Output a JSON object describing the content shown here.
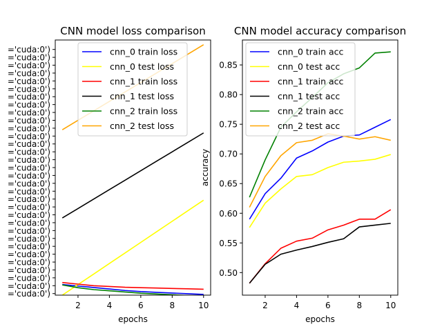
{
  "chart_data": [
    {
      "type": "line",
      "title": "CNN model loss comparison",
      "xlabel": "epochs",
      "ylabel": "",
      "x": [
        1,
        2,
        3,
        4,
        5,
        6,
        7,
        8,
        9,
        10
      ],
      "xlim": [
        0.55,
        10.45
      ],
      "xticks": [
        2,
        4,
        6,
        8,
        10
      ],
      "ylim": [
        -0.2,
        32.2
      ],
      "ytick_label": "='cuda:0')",
      "ytick_count": 32,
      "legend_position": "top-right",
      "series": [
        {
          "name": "cnn_0 train loss",
          "color": "#0000ff",
          "values": [
            1.15,
            0.96,
            0.77,
            0.58,
            0.39,
            0.25,
            0.16,
            0.07,
            -0.02,
            -0.11
          ]
        },
        {
          "name": "cnn_0 test loss",
          "color": "#ffff00",
          "values": [
            -0.2,
            1.14,
            2.48,
            3.82,
            5.16,
            6.5,
            7.84,
            9.18,
            10.52,
            11.86
          ]
        },
        {
          "name": "cnn_1 train loss",
          "color": "#ff0000",
          "values": [
            1.4,
            1.2,
            1.0,
            0.9,
            0.8,
            0.75,
            0.7,
            0.65,
            0.6,
            0.55
          ]
        },
        {
          "name": "cnn_1 test loss",
          "color": "#000000",
          "values": [
            9.6,
            10.8,
            12.0,
            13.2,
            14.4,
            15.6,
            16.8,
            18.0,
            19.2,
            20.4
          ]
        },
        {
          "name": "cnn_2 train loss",
          "color": "#008000",
          "values": [
            1.1,
            0.75,
            0.5,
            0.35,
            0.2,
            0.05,
            -0.05,
            -0.15,
            -0.25,
            -0.35
          ]
        },
        {
          "name": "cnn_2 test loss",
          "color": "#ffa500",
          "values": [
            20.8,
            22.0,
            23.2,
            24.4,
            25.6,
            26.8,
            28.0,
            29.2,
            30.4,
            31.6
          ]
        }
      ]
    },
    {
      "type": "line",
      "title": "CNN model accuracy comparison",
      "xlabel": "epochs",
      "ylabel": "accuracy",
      "x": [
        1,
        2,
        3,
        4,
        5,
        6,
        7,
        8,
        9,
        10
      ],
      "xlim": [
        0.55,
        10.45
      ],
      "xticks": [
        2,
        4,
        6,
        8,
        10
      ],
      "ylim": [
        0.462,
        0.892
      ],
      "yticks": [
        0.5,
        0.55,
        0.6,
        0.65,
        0.7,
        0.75,
        0.8,
        0.85
      ],
      "ytick_labels": [
        "0.50",
        "0.55",
        "0.60",
        "0.65",
        "0.70",
        "0.75",
        "0.80",
        "0.85"
      ],
      "legend_position": "top-left",
      "series": [
        {
          "name": "cnn_0 train acc",
          "color": "#0000ff",
          "values": [
            0.59,
            0.633,
            0.659,
            0.693,
            0.705,
            0.72,
            0.73,
            0.732,
            0.745,
            0.758
          ]
        },
        {
          "name": "cnn_0 test acc",
          "color": "#ffff00",
          "values": [
            0.576,
            0.617,
            0.641,
            0.662,
            0.665,
            0.677,
            0.686,
            0.688,
            0.691,
            0.699
          ]
        },
        {
          "name": "cnn_1 train acc",
          "color": "#ff0000",
          "values": [
            0.482,
            0.515,
            0.541,
            0.553,
            0.558,
            0.572,
            0.58,
            0.59,
            0.59,
            0.606
          ]
        },
        {
          "name": "cnn_1 test acc",
          "color": "#000000",
          "values": [
            0.482,
            0.514,
            0.531,
            0.538,
            0.544,
            0.551,
            0.557,
            0.577,
            0.58,
            0.583
          ]
        },
        {
          "name": "cnn_2 train acc",
          "color": "#008000",
          "values": [
            0.627,
            0.69,
            0.745,
            0.771,
            0.795,
            0.82,
            0.835,
            0.845,
            0.87,
            0.872
          ]
        },
        {
          "name": "cnn_2 test acc",
          "color": "#ffa500",
          "values": [
            0.61,
            0.662,
            0.697,
            0.719,
            0.723,
            0.734,
            0.73,
            0.725,
            0.729,
            0.723
          ]
        }
      ]
    }
  ]
}
